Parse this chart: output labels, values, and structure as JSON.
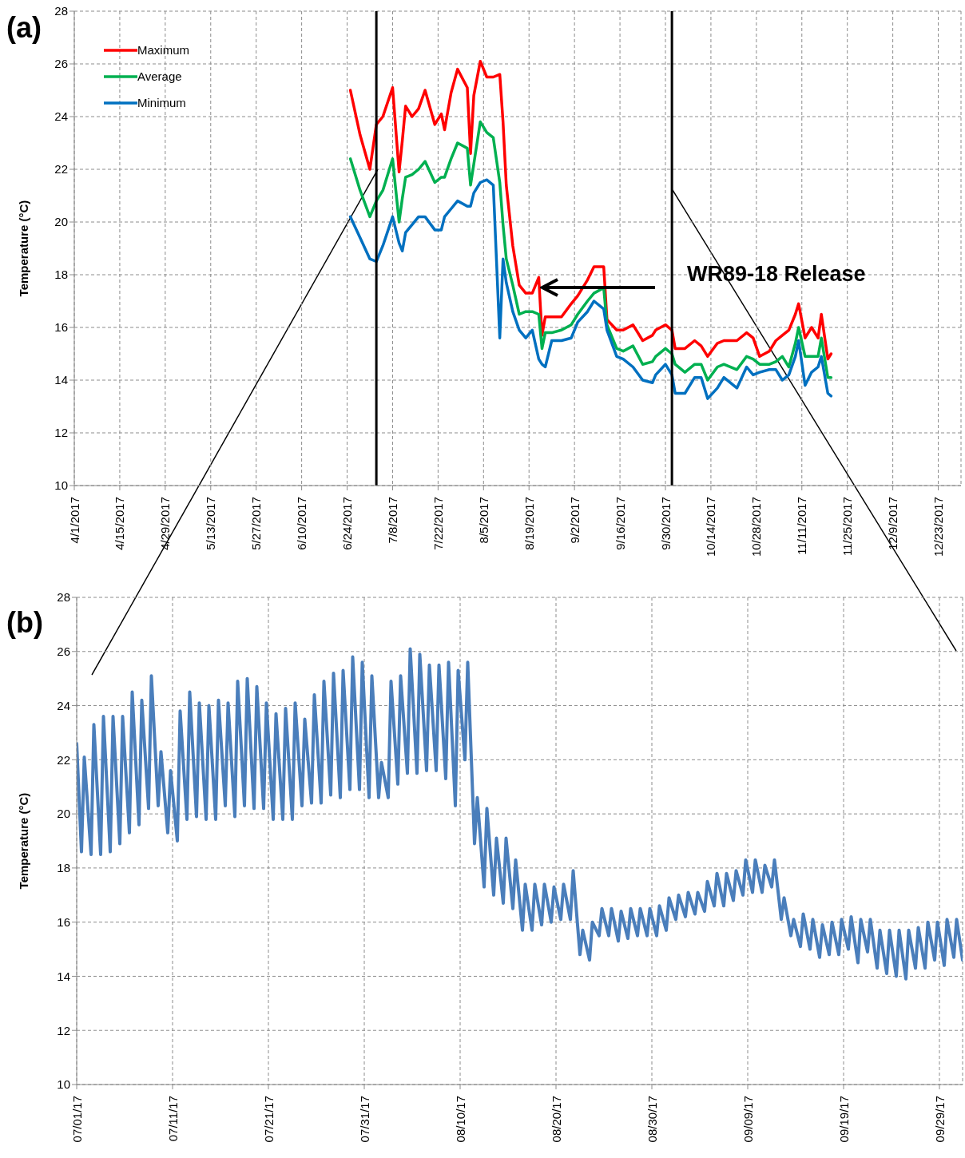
{
  "chart_data": [
    {
      "type": "line",
      "ylabel": "Temperature (°C)",
      "annotations": [
        "(a)",
        "WR89-18 Release"
      ],
      "xlim": [
        "2017-04-01",
        "2017-12-30"
      ],
      "xticks": [
        {
          "value": "2017-04-01",
          "label": "4/1/2017"
        },
        {
          "value": "2017-04-15",
          "label": "4/15/2017"
        },
        {
          "value": "2017-04-29",
          "label": "4/29/2017"
        },
        {
          "value": "2017-05-13",
          "label": "5/13/2017"
        },
        {
          "value": "2017-05-27",
          "label": "5/27/2017"
        },
        {
          "value": "2017-06-10",
          "label": "6/10/2017"
        },
        {
          "value": "2017-06-24",
          "label": "6/24/2017"
        },
        {
          "value": "2017-07-08",
          "label": "7/8/2017"
        },
        {
          "value": "2017-07-22",
          "label": "7/22/2017"
        },
        {
          "value": "2017-08-05",
          "label": "8/5/2017"
        },
        {
          "value": "2017-08-19",
          "label": "8/19/2017"
        },
        {
          "value": "2017-09-02",
          "label": "9/2/2017"
        },
        {
          "value": "2017-09-16",
          "label": "9/16/2017"
        },
        {
          "value": "2017-09-30",
          "label": "9/30/2017"
        },
        {
          "value": "2017-10-14",
          "label": "10/14/2017"
        },
        {
          "value": "2017-10-28",
          "label": "10/28/2017"
        },
        {
          "value": "2017-11-11",
          "label": "11/11/2017"
        },
        {
          "value": "2017-11-25",
          "label": "11/25/2017"
        },
        {
          "value": "2017-12-09",
          "label": "12/9/2017"
        },
        {
          "value": "2017-12-23",
          "label": "12/23/2017"
        }
      ],
      "ylim": [
        10,
        28
      ],
      "yticks": [
        10,
        12,
        14,
        16,
        18,
        20,
        22,
        24,
        26,
        28
      ],
      "grid": true,
      "legend": "top left",
      "x": [
        "2017-06-25",
        "2017-06-28",
        "2017-07-01",
        "2017-07-03",
        "2017-07-05",
        "2017-07-08",
        "2017-07-10",
        "2017-07-11",
        "2017-07-12",
        "2017-07-14",
        "2017-07-16",
        "2017-07-18",
        "2017-07-21",
        "2017-07-23",
        "2017-07-24",
        "2017-07-26",
        "2017-07-28",
        "2017-07-31",
        "2017-08-01",
        "2017-08-02",
        "2017-08-04",
        "2017-08-06",
        "2017-08-08",
        "2017-08-10",
        "2017-08-11",
        "2017-08-12",
        "2017-08-14",
        "2017-08-16",
        "2017-08-18",
        "2017-08-20",
        "2017-08-22",
        "2017-08-23",
        "2017-08-24",
        "2017-08-26",
        "2017-08-29",
        "2017-09-01",
        "2017-09-03",
        "2017-09-06",
        "2017-09-08",
        "2017-09-11",
        "2017-09-12",
        "2017-09-15",
        "2017-09-17",
        "2017-09-20",
        "2017-09-23",
        "2017-09-26",
        "2017-09-27",
        "2017-09-30",
        "2017-10-02",
        "2017-10-03",
        "2017-10-06",
        "2017-10-09",
        "2017-10-11",
        "2017-10-13",
        "2017-10-16",
        "2017-10-18",
        "2017-10-22",
        "2017-10-25",
        "2017-10-27",
        "2017-10-29",
        "2017-11-01",
        "2017-11-03",
        "2017-11-05",
        "2017-11-07",
        "2017-11-09",
        "2017-11-10",
        "2017-11-12",
        "2017-11-14",
        "2017-11-16",
        "2017-11-17",
        "2017-11-19",
        "2017-11-20"
      ],
      "series": [
        {
          "name": "Maximum",
          "color": "#ff0000",
          "values": [
            25.0,
            23.3,
            22.0,
            23.7,
            24.0,
            25.1,
            21.9,
            23.1,
            24.4,
            24.0,
            24.3,
            25.0,
            23.7,
            24.1,
            23.5,
            24.9,
            25.8,
            25.1,
            22.6,
            24.8,
            26.1,
            25.5,
            25.5,
            25.6,
            23.8,
            21.4,
            19.1,
            17.6,
            17.3,
            17.3,
            17.9,
            15.7,
            16.4,
            16.4,
            16.4,
            16.9,
            17.2,
            17.8,
            18.3,
            18.3,
            16.3,
            15.9,
            15.9,
            16.1,
            15.5,
            15.7,
            15.9,
            16.1,
            15.9,
            15.2,
            15.2,
            15.5,
            15.3,
            14.9,
            15.4,
            15.5,
            15.5,
            15.8,
            15.6,
            14.9,
            15.1,
            15.5,
            15.7,
            15.9,
            16.5,
            16.9,
            15.6,
            16.0,
            15.6,
            16.5,
            14.8,
            15.0
          ]
        },
        {
          "name": "Average",
          "color": "#00b050",
          "values": [
            22.4,
            21.2,
            20.2,
            20.8,
            21.2,
            22.4,
            20.0,
            20.9,
            21.7,
            21.8,
            22.0,
            22.3,
            21.5,
            21.7,
            21.7,
            22.4,
            23.0,
            22.8,
            21.4,
            22.2,
            23.8,
            23.4,
            23.2,
            21.5,
            19.9,
            18.6,
            17.6,
            16.5,
            16.6,
            16.6,
            16.5,
            15.2,
            15.8,
            15.8,
            15.9,
            16.1,
            16.5,
            17.0,
            17.3,
            17.5,
            16.1,
            15.2,
            15.1,
            15.3,
            14.6,
            14.7,
            14.9,
            15.2,
            15.0,
            14.6,
            14.3,
            14.6,
            14.6,
            14.0,
            14.5,
            14.6,
            14.4,
            14.9,
            14.8,
            14.6,
            14.6,
            14.7,
            14.9,
            14.5,
            15.4,
            16.0,
            14.9,
            14.9,
            14.9,
            15.6,
            14.1,
            14.1
          ]
        },
        {
          "name": "Minimum",
          "color": "#0070c0",
          "values": [
            20.2,
            19.4,
            18.6,
            18.5,
            19.1,
            20.2,
            19.2,
            18.9,
            19.6,
            19.9,
            20.2,
            20.2,
            19.7,
            19.7,
            20.2,
            20.5,
            20.8,
            20.6,
            20.6,
            21.1,
            21.5,
            21.6,
            21.4,
            15.6,
            18.6,
            17.7,
            16.6,
            15.9,
            15.6,
            15.9,
            14.8,
            14.6,
            14.5,
            15.5,
            15.5,
            15.6,
            16.2,
            16.6,
            17.0,
            16.7,
            15.9,
            14.9,
            14.8,
            14.5,
            14.0,
            13.9,
            14.2,
            14.6,
            14.2,
            13.5,
            13.5,
            14.1,
            14.1,
            13.3,
            13.7,
            14.1,
            13.7,
            14.5,
            14.2,
            14.3,
            14.4,
            14.4,
            14.0,
            14.2,
            14.9,
            15.5,
            13.8,
            14.3,
            14.5,
            14.9,
            13.5,
            13.4
          ]
        }
      ],
      "ref_lines": [
        {
          "axis": "x",
          "value": "2017-07-03",
          "color": "#000000"
        },
        {
          "axis": "x",
          "value": "2017-10-02",
          "color": "#000000"
        }
      ]
    },
    {
      "type": "line",
      "ylabel": "Temperature (°C)",
      "annotations": [
        "(b)"
      ],
      "xlim": [
        "2017-07-01",
        "2017-10-01T10:00"
      ],
      "xticks": [
        {
          "value": "2017-07-01",
          "label": "07/01/17"
        },
        {
          "value": "2017-07-11",
          "label": "07/11/17"
        },
        {
          "value": "2017-07-21",
          "label": "07/21/17"
        },
        {
          "value": "2017-07-31",
          "label": "07/31/17"
        },
        {
          "value": "2017-08-10",
          "label": "08/10/17"
        },
        {
          "value": "2017-08-20",
          "label": "08/20/17"
        },
        {
          "value": "2017-08-30",
          "label": "08/30/17"
        },
        {
          "value": "2017-09-09",
          "label": "09/09/17"
        },
        {
          "value": "2017-09-19",
          "label": "09/19/17"
        },
        {
          "value": "2017-09-29",
          "label": "09/29/17"
        }
      ],
      "ylim": [
        10,
        28
      ],
      "yticks": [
        10,
        12,
        14,
        16,
        18,
        20,
        22,
        24,
        26,
        28
      ],
      "grid": true,
      "color": "#4a7ebb",
      "x": [
        "2017-07-01T00:00",
        "2017-07-01T12:00",
        "2017-07-01T19:00",
        "2017-07-02T12:00",
        "2017-07-02T19:00",
        "2017-07-03T12:00",
        "2017-07-03T19:00",
        "2017-07-04T12:00",
        "2017-07-04T19:00",
        "2017-07-05T12:00",
        "2017-07-05T19:00",
        "2017-07-06T12:00",
        "2017-07-06T19:00",
        "2017-07-07T12:00",
        "2017-07-07T19:00",
        "2017-07-08T12:00",
        "2017-07-08T19:00",
        "2017-07-09T12:00",
        "2017-07-09T19:00",
        "2017-07-10T12:00",
        "2017-07-10T19:00",
        "2017-07-11T12:00",
        "2017-07-11T19:00",
        "2017-07-12T12:00",
        "2017-07-12T19:00",
        "2017-07-13T12:00",
        "2017-07-13T19:00",
        "2017-07-14T12:00",
        "2017-07-14T19:00",
        "2017-07-15T12:00",
        "2017-07-15T19:00",
        "2017-07-16T12:00",
        "2017-07-16T19:00",
        "2017-07-17T12:00",
        "2017-07-17T19:00",
        "2017-07-18T12:00",
        "2017-07-18T19:00",
        "2017-07-19T12:00",
        "2017-07-19T19:00",
        "2017-07-20T12:00",
        "2017-07-20T19:00",
        "2017-07-21T12:00",
        "2017-07-21T19:00",
        "2017-07-22T12:00",
        "2017-07-22T19:00",
        "2017-07-23T12:00",
        "2017-07-23T19:00",
        "2017-07-24T12:00",
        "2017-07-24T19:00",
        "2017-07-25T12:00",
        "2017-07-25T19:00",
        "2017-07-26T12:00",
        "2017-07-26T19:00",
        "2017-07-27T12:00",
        "2017-07-27T19:00",
        "2017-07-28T12:00",
        "2017-07-28T19:00",
        "2017-07-29T12:00",
        "2017-07-29T19:00",
        "2017-07-30T12:00",
        "2017-07-30T19:00",
        "2017-07-31T12:00",
        "2017-07-31T19:00",
        "2017-08-01T12:00",
        "2017-08-01T19:00",
        "2017-08-02T12:00",
        "2017-08-02T19:00",
        "2017-08-03T12:00",
        "2017-08-03T19:00",
        "2017-08-04T12:00",
        "2017-08-04T19:00",
        "2017-08-05T12:00",
        "2017-08-05T19:00",
        "2017-08-06T12:00",
        "2017-08-06T19:00",
        "2017-08-07T12:00",
        "2017-08-07T19:00",
        "2017-08-08T12:00",
        "2017-08-08T19:00",
        "2017-08-09T12:00",
        "2017-08-09T19:00",
        "2017-08-10T12:00",
        "2017-08-10T19:00",
        "2017-08-11T12:00",
        "2017-08-11T19:00",
        "2017-08-12T12:00",
        "2017-08-12T19:00",
        "2017-08-13T12:00",
        "2017-08-13T19:00",
        "2017-08-14T12:00",
        "2017-08-14T19:00",
        "2017-08-15T12:00",
        "2017-08-15T19:00",
        "2017-08-16T12:00",
        "2017-08-16T19:00",
        "2017-08-17T12:00",
        "2017-08-17T19:00",
        "2017-08-18T12:00",
        "2017-08-18T19:00",
        "2017-08-19T12:00",
        "2017-08-19T19:00",
        "2017-08-20T12:00",
        "2017-08-20T19:00",
        "2017-08-21T12:00",
        "2017-08-21T19:00",
        "2017-08-22T12:00",
        "2017-08-22T19:00",
        "2017-08-23T12:00",
        "2017-08-23T19:00",
        "2017-08-24T12:00",
        "2017-08-24T19:00",
        "2017-08-25T12:00",
        "2017-08-25T19:00",
        "2017-08-26T12:00",
        "2017-08-26T19:00",
        "2017-08-27T12:00",
        "2017-08-27T19:00",
        "2017-08-28T12:00",
        "2017-08-28T19:00",
        "2017-08-29T12:00",
        "2017-08-29T19:00",
        "2017-08-30T12:00",
        "2017-08-30T19:00",
        "2017-08-31T12:00",
        "2017-08-31T19:00",
        "2017-09-01T12:00",
        "2017-09-01T19:00",
        "2017-09-02T12:00",
        "2017-09-02T19:00",
        "2017-09-03T12:00",
        "2017-09-03T19:00",
        "2017-09-04T12:00",
        "2017-09-04T19:00",
        "2017-09-05T12:00",
        "2017-09-05T19:00",
        "2017-09-06T12:00",
        "2017-09-06T19:00",
        "2017-09-07T12:00",
        "2017-09-07T19:00",
        "2017-09-08T12:00",
        "2017-09-08T19:00",
        "2017-09-09T12:00",
        "2017-09-09T19:00",
        "2017-09-10T12:00",
        "2017-09-10T19:00",
        "2017-09-11T12:00",
        "2017-09-11T19:00",
        "2017-09-12T12:00",
        "2017-09-12T19:00",
        "2017-09-13T12:00",
        "2017-09-13T19:00",
        "2017-09-14T12:00",
        "2017-09-14T19:00",
        "2017-09-15T12:00",
        "2017-09-15T19:00",
        "2017-09-16T12:00",
        "2017-09-16T19:00",
        "2017-09-17T12:00",
        "2017-09-17T19:00",
        "2017-09-18T12:00",
        "2017-09-18T19:00",
        "2017-09-19T12:00",
        "2017-09-19T19:00",
        "2017-09-20T12:00",
        "2017-09-20T19:00",
        "2017-09-21T12:00",
        "2017-09-21T19:00",
        "2017-09-22T12:00",
        "2017-09-22T19:00",
        "2017-09-23T12:00",
        "2017-09-23T19:00",
        "2017-09-24T12:00",
        "2017-09-24T19:00",
        "2017-09-25T12:00",
        "2017-09-25T19:00",
        "2017-09-26T12:00",
        "2017-09-26T19:00",
        "2017-09-27T12:00",
        "2017-09-27T19:00",
        "2017-09-28T12:00",
        "2017-09-28T19:00",
        "2017-09-29T12:00",
        "2017-09-29T19:00",
        "2017-09-30T12:00",
        "2017-09-30T19:00",
        "2017-10-01T10:00"
      ],
      "values": [
        22.6,
        18.6,
        22.1,
        18.5,
        23.3,
        18.5,
        23.6,
        18.6,
        23.6,
        18.9,
        23.6,
        19.3,
        24.5,
        19.6,
        24.2,
        20.2,
        25.1,
        20.3,
        22.3,
        19.3,
        21.6,
        19.0,
        23.8,
        19.8,
        24.5,
        19.9,
        24.1,
        19.8,
        24.0,
        19.8,
        24.2,
        20.3,
        24.1,
        19.9,
        24.9,
        20.3,
        25.0,
        20.2,
        24.7,
        20.2,
        24.1,
        19.8,
        23.7,
        19.8,
        23.9,
        19.8,
        24.1,
        20.3,
        23.5,
        20.4,
        24.4,
        20.4,
        24.9,
        20.7,
        25.2,
        20.6,
        25.3,
        20.9,
        25.8,
        20.9,
        25.6,
        20.6,
        25.1,
        20.6,
        21.9,
        20.6,
        24.9,
        21.1,
        25.1,
        21.5,
        26.1,
        21.5,
        25.9,
        21.6,
        25.5,
        21.6,
        25.5,
        21.3,
        25.6,
        20.3,
        25.3,
        22.0,
        25.6,
        18.9,
        20.6,
        17.3,
        20.2,
        17.0,
        19.1,
        16.7,
        19.1,
        16.5,
        18.3,
        15.7,
        17.4,
        15.7,
        17.4,
        15.9,
        17.4,
        16.0,
        17.3,
        16.1,
        17.4,
        16.1,
        17.9,
        14.8,
        15.7,
        14.6,
        16.0,
        15.5,
        16.5,
        15.5,
        16.5,
        15.3,
        16.4,
        15.4,
        16.5,
        15.5,
        16.5,
        15.5,
        16.5,
        15.5,
        16.6,
        15.7,
        16.9,
        16.1,
        17.0,
        16.2,
        17.1,
        16.3,
        17.1,
        16.4,
        17.5,
        16.6,
        17.8,
        16.6,
        17.8,
        16.8,
        17.9,
        17.0,
        18.3,
        17.1,
        18.3,
        17.1,
        18.1,
        17.3,
        18.3,
        16.1,
        16.9,
        15.5,
        16.1,
        15.1,
        16.3,
        15.0,
        16.1,
        14.7,
        15.9,
        14.8,
        16.0,
        14.8,
        16.1,
        15.0,
        16.2,
        14.5,
        16.1,
        14.9,
        16.1,
        14.3,
        15.7,
        14.1,
        15.7,
        14.0,
        15.7,
        13.9,
        15.7,
        14.3,
        15.8,
        14.3,
        16.0,
        14.6,
        16.0,
        14.4,
        16.1,
        14.7,
        16.1,
        14.6
      ]
    }
  ]
}
